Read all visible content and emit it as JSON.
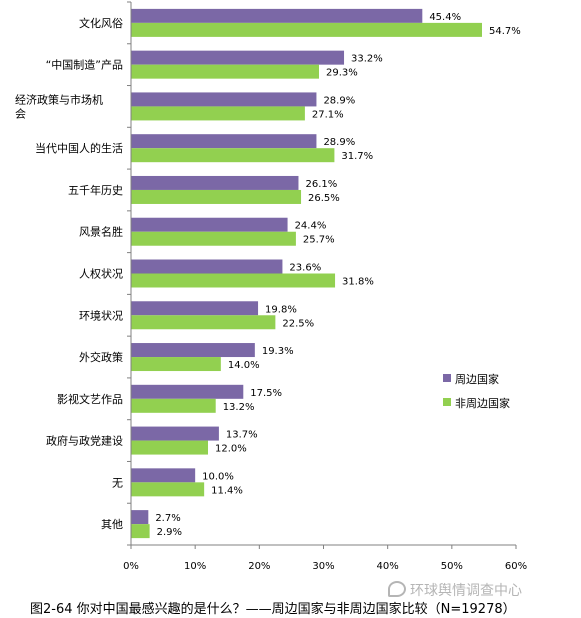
{
  "chart_data": {
    "type": "bar",
    "orientation": "horizontal",
    "categories": [
      "文化风俗",
      "“中国制造”产品",
      "经济政策与市场机会",
      "当代中国人的生活",
      "五千年历史",
      "风景名胜",
      "人权状况",
      "环境状况",
      "外交政策",
      "影视文艺作品",
      "政府与政党建设",
      "无",
      "其他"
    ],
    "category_lines": [
      [
        "文化风俗"
      ],
      [
        "“中国制造”产品"
      ],
      [
        "经济政策与市场机",
        "会"
      ],
      [
        "当代中国人的生活"
      ],
      [
        "五千年历史"
      ],
      [
        "风景名胜"
      ],
      [
        "人权状况"
      ],
      [
        "环境状况"
      ],
      [
        "外交政策"
      ],
      [
        "影视文艺作品"
      ],
      [
        "政府与政党建设"
      ],
      [
        "无"
      ],
      [
        "其他"
      ]
    ],
    "series": [
      {
        "name": "周边国家",
        "color": "#7b68a6",
        "values": [
          45.4,
          33.2,
          28.9,
          28.9,
          26.1,
          24.4,
          23.6,
          19.8,
          19.3,
          17.5,
          13.7,
          10.0,
          2.7
        ],
        "labels": [
          "45.4%",
          "33.2%",
          "28.9%",
          "28.9%",
          "26.1%",
          "24.4%",
          "23.6%",
          "19.8%",
          "19.3%",
          "17.5%",
          "13.7%",
          "10.0%",
          "2.7%"
        ]
      },
      {
        "name": "非周边国家",
        "color": "#92d050",
        "values": [
          54.7,
          29.3,
          27.1,
          31.7,
          26.5,
          25.7,
          31.8,
          22.5,
          14.0,
          13.2,
          12.0,
          11.4,
          2.9
        ],
        "labels": [
          "54.7%",
          "29.3%",
          "27.1%",
          "31.7%",
          "26.5%",
          "25.7%",
          "31.8%",
          "22.5%",
          "14.0%",
          "13.2%",
          "12.0%",
          "11.4%",
          "2.9%"
        ]
      }
    ],
    "xlim": [
      0,
      60
    ],
    "xticks": [
      "0%",
      "10%",
      "20%",
      "30%",
      "40%",
      "50%",
      "60%"
    ],
    "grid": false,
    "legend_position": "right"
  },
  "caption": "图2-64  你对中国最感兴趣的是什么？——周边国家与非周边国家比较（N=19278）",
  "watermark": "环球舆情调查中心"
}
